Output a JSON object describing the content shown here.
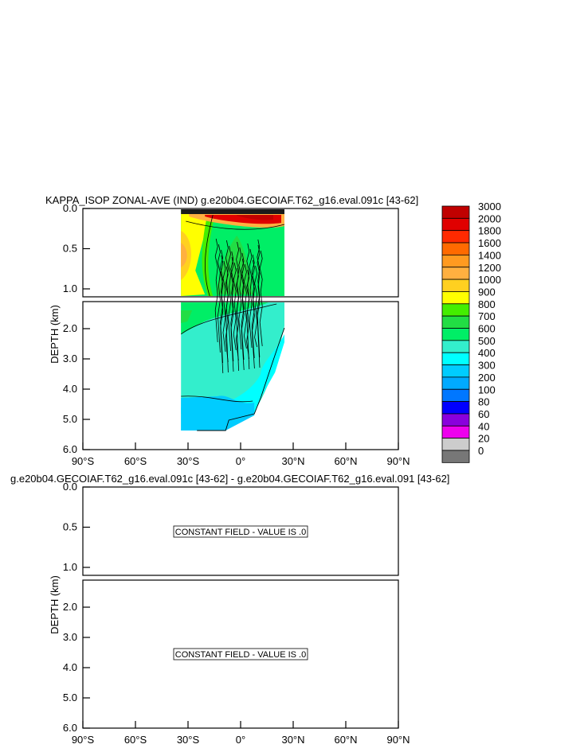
{
  "chart_data": [
    {
      "type": "heatmap",
      "title": "KAPPA_ISOP ZONAL-AVE (IND) g.e20b04.GECOIAF.T62_g16.eval.091c [43-62]",
      "ylabel": "DEPTH (km)",
      "x_ticks": [
        "90°S",
        "60°S",
        "30°S",
        "0°",
        "30°N",
        "60°N",
        "90°N"
      ],
      "x_range": [
        -90,
        90
      ],
      "upper_panel": {
        "depth_range": [
          0.0,
          1.0
        ],
        "ticks": [
          "0.0",
          "0.5",
          "1.0"
        ]
      },
      "lower_panel": {
        "depth_range": [
          1.0,
          6.0
        ],
        "ticks": [
          "2.0",
          "3.0",
          "4.0",
          "5.0",
          "6.0"
        ]
      },
      "field_extent": {
        "lat_min": -34,
        "lat_max": 25,
        "max_depth_km": 5.4
      },
      "colorbar": {
        "labels": [
          "3000",
          "2000",
          "1800",
          "1600",
          "1400",
          "1200",
          "1000",
          "900",
          "800",
          "700",
          "600",
          "500",
          "400",
          "300",
          "200",
          "100",
          "80",
          "60",
          "40",
          "20",
          "0"
        ],
        "colors": [
          "#c00000",
          "#e00000",
          "#ff2a00",
          "#ff6a00",
          "#ff9a20",
          "#ffb040",
          "#ffd020",
          "#ffff00",
          "#44ee00",
          "#22dd44",
          "#00ee66",
          "#33eecc",
          "#00ffff",
          "#00ccff",
          "#00aaff",
          "#0077ff",
          "#0000ff",
          "#8a00dd",
          "#ee00ee",
          "#cccccc",
          "#777777"
        ]
      }
    },
    {
      "type": "heatmap",
      "title": "g.e20b04.GECOIAF.T62_g16.eval.091c [43-62] - g.e20b04.GECOIAF.T62_g16.eval.091 [43-62]",
      "ylabel": "DEPTH (km)",
      "x_ticks": [
        "90°S",
        "60°S",
        "30°S",
        "0°",
        "30°N",
        "60°N",
        "90°N"
      ],
      "x_range": [
        -90,
        90
      ],
      "upper_panel": {
        "depth_range": [
          0.0,
          1.0
        ],
        "ticks": [
          "0.0",
          "0.5",
          "1.0"
        ],
        "note": "CONSTANT FIELD - VALUE IS .0"
      },
      "lower_panel": {
        "depth_range": [
          1.0,
          6.0
        ],
        "ticks": [
          "2.0",
          "3.0",
          "4.0",
          "5.0",
          "6.0"
        ],
        "note": "CONSTANT FIELD - VALUE IS .0"
      }
    }
  ]
}
